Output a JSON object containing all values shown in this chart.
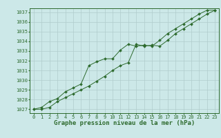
{
  "title": "Graphe pression niveau de la mer (hPa)",
  "bg_color": "#cce8e8",
  "grid_color": "#b0cccc",
  "line_color": "#2d6a2d",
  "marker_color": "#2d6a2d",
  "x": [
    0,
    1,
    2,
    3,
    4,
    5,
    6,
    7,
    8,
    9,
    10,
    11,
    12,
    13,
    14,
    15,
    16,
    17,
    18,
    19,
    20,
    21,
    22,
    23
  ],
  "series1": [
    1027.0,
    1027.0,
    1027.2,
    1027.8,
    1028.2,
    1028.6,
    1029.0,
    1029.4,
    1029.9,
    1030.4,
    1031.0,
    1031.5,
    1031.8,
    1033.7,
    1033.5,
    1033.6,
    1033.5,
    1034.1,
    1034.8,
    1035.3,
    1035.8,
    1036.3,
    1036.8,
    1037.2
  ],
  "series2": [
    1027.0,
    1027.2,
    1027.8,
    1028.1,
    1028.8,
    1029.2,
    1029.6,
    1031.5,
    1031.9,
    1032.2,
    1032.2,
    1033.1,
    1033.7,
    1033.5,
    1033.6,
    1033.5,
    1034.1,
    1034.8,
    1035.3,
    1035.8,
    1036.3,
    1036.8,
    1037.2,
    1037.2
  ],
  "ylim_min": 1026.6,
  "ylim_max": 1037.4,
  "yticks": [
    1027,
    1028,
    1029,
    1030,
    1031,
    1032,
    1033,
    1034,
    1035,
    1036,
    1037
  ],
  "xticks": [
    0,
    1,
    2,
    3,
    4,
    5,
    6,
    7,
    8,
    9,
    10,
    11,
    12,
    13,
    14,
    15,
    16,
    17,
    18,
    19,
    20,
    21,
    22,
    23
  ],
  "title_fontsize": 6.5,
  "tick_fontsize": 5.0,
  "fig_width": 3.2,
  "fig_height": 2.0,
  "dpi": 100
}
